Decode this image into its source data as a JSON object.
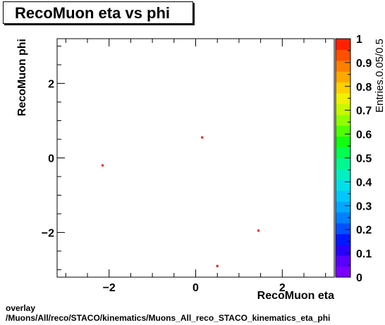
{
  "title": "RecoMuon eta vs phi",
  "footer": {
    "line1": "overlay",
    "line2": "/Muons/All/reco/STACO/kinematics/Muons_All_reco_STACO_kinematics_eta_phi"
  },
  "chart_data": {
    "type": "scatter",
    "title": "RecoMuon eta vs phi",
    "xlabel": "RecoMuon eta",
    "ylabel": "RecoMuon phi",
    "zlabel": "Entries.0.05/0.5",
    "xlim": [
      -3.2,
      3.2
    ],
    "ylim": [
      -3.2,
      3.2
    ],
    "zlim": [
      0,
      1
    ],
    "x_ticks": [
      -2,
      0,
      2
    ],
    "x_tick_labels": [
      "−2",
      "0",
      "2"
    ],
    "y_ticks": [
      -2,
      0,
      2
    ],
    "y_tick_labels": [
      "−2",
      "0",
      "2"
    ],
    "z_ticks": [
      0,
      0.1,
      0.2,
      0.3,
      0.4,
      0.5,
      0.6,
      0.7,
      0.8,
      0.9,
      1
    ],
    "z_tick_labels": [
      "0",
      "0.1",
      "0.2",
      "0.3",
      "0.4",
      "0.5",
      "0.6",
      "0.7",
      "0.8",
      "0.9",
      "1"
    ],
    "points": [
      {
        "x": -2.15,
        "y": -0.2,
        "z": 1
      },
      {
        "x": 0.15,
        "y": 0.55,
        "z": 1
      },
      {
        "x": 1.45,
        "y": -1.95,
        "z": 1
      },
      {
        "x": 0.5,
        "y": -2.9,
        "z": 1
      }
    ],
    "grid": false,
    "colorbar": "right",
    "colors": [
      "#7a00ff",
      "#5a00ff",
      "#2a00ff",
      "#0018ff",
      "#0050ff",
      "#0080ff",
      "#00a8ff",
      "#00c8ff",
      "#00e0e8",
      "#00f0c0",
      "#00f890",
      "#00ff50",
      "#10ff10",
      "#50ff00",
      "#90ff00",
      "#c8f800",
      "#f0f000",
      "#ffd000",
      "#ffa800",
      "#ff8000",
      "#ff5000",
      "#ff2000"
    ],
    "marker_color": "#ff0000"
  }
}
